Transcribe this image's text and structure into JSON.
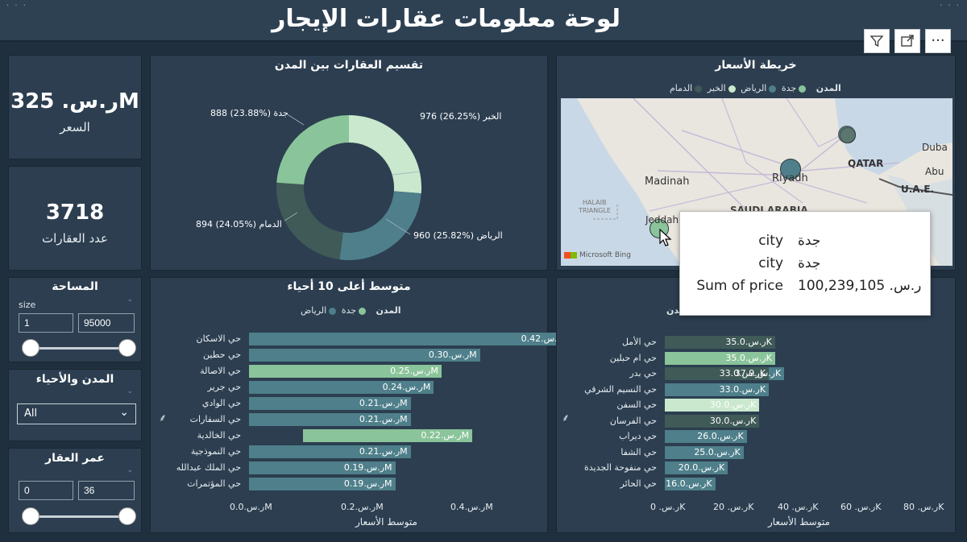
{
  "header": {
    "title": "لوحة معلومات عقارات الإيجار",
    "toolbar": {
      "filter_icon": "filter-icon",
      "focus_icon": "expand-icon",
      "more_label": "···"
    }
  },
  "kpis": {
    "price": {
      "value": "ر.س. 325M",
      "label": "السعر"
    },
    "count": {
      "value": "3718",
      "label": "عدد العقارات"
    }
  },
  "slicers": {
    "area": {
      "title": "المساحة",
      "field": "size",
      "min": "1",
      "max": "95000"
    },
    "city": {
      "title": "المدن والأحياء",
      "value": "All"
    },
    "age": {
      "title": "عمر العقار",
      "min": "0",
      "max": "36"
    }
  },
  "donut": {
    "title": "تقسيم العقارات بين المدن",
    "labels": {
      "jeddah": "888 (23.88%) جدة",
      "khobar": "976 (26.25%) الخبر",
      "riyadh": "960 (25.82%) الرياض",
      "dammam": "894 (24.05%) الدمام"
    }
  },
  "map_panel": {
    "title": "خريطة الأسعار",
    "legend_title": "المدن",
    "legend": [
      "جدة",
      "الرياض",
      "الخبر",
      "الدمام"
    ],
    "labels": {
      "madinah": "Madinah",
      "riyadh": "Riyadh",
      "qatar": "QATAR",
      "dubai": "Duba",
      "abu": "Abu",
      "uae": "U.A.E.",
      "jeddah": "Jeddah",
      "halaib1": "HALAIB",
      "halaib2": "TRIANGLE",
      "saudi": "SAUDI ARABIA",
      "bing": "Microsoft Bing"
    }
  },
  "tooltip": {
    "rows": [
      {
        "key": "city",
        "value": "جدة"
      },
      {
        "key": "city",
        "value": "جدة"
      },
      {
        "key": "Sum of price",
        "value": "ر.س. 100,239,105"
      }
    ]
  },
  "bar_left": {
    "title": "متوسط أعلى 10 أحياء",
    "legend_title": "المدن",
    "legend": [
      "جدة",
      "الرياض"
    ],
    "rows": [
      {
        "name": "حي الاسكان",
        "label": "ر.س.0.42M"
      },
      {
        "name": "حي حطين",
        "label": "ر.س.0.30M"
      },
      {
        "name": "حي الاصالة",
        "label": "ر.س.0.25M"
      },
      {
        "name": "حي جرير",
        "label": "ر.س.0.24M"
      },
      {
        "name": "حي الوادي",
        "label": "ر.س.0.21M"
      },
      {
        "name": "حي السفارات",
        "label": "ر.س.0.21M"
      },
      {
        "name": "حي الخالدية",
        "label": "ر.س.0.22M"
      },
      {
        "name": "حي النموذجية",
        "label": "ر.س.0.21M"
      },
      {
        "name": "حي الملك عبدالله",
        "label": "ر.س.0.19M"
      },
      {
        "name": "حي المؤتمرات",
        "label": "ر.س.0.19M"
      }
    ],
    "ticks": [
      "ر.س.0.0M",
      "ر.س.0.2M",
      "ر.س.0.4M"
    ],
    "xlabel": "متوسط الأسعار"
  },
  "bar_right": {
    "legend_title": "المدن",
    "rows": [
      {
        "name": "حي الأمل",
        "label": "ر.س.35.0K"
      },
      {
        "name": "حي ام حبلين",
        "label": "ر.س.35.0K"
      },
      {
        "name": "حي بدر",
        "label": "ر.س.33.0K",
        "label2": "ر.س.37.9K"
      },
      {
        "name": "حي النسيم الشرقي",
        "label": "ر.س.33.0K"
      },
      {
        "name": "حي السفن",
        "label": "ر.س.30.0K"
      },
      {
        "name": "حي الفرسان",
        "label": "ر.س.30.0K"
      },
      {
        "name": "حي ديراب",
        "label": "ر.س.26.0K"
      },
      {
        "name": "حي الشفا",
        "label": "ر.س.25.0K"
      },
      {
        "name": "حي منفوحة الجديدة",
        "label": "ر.س.20.0K"
      },
      {
        "name": "حي الحائر",
        "label": "ر.س.16.0K"
      }
    ],
    "ticks": [
      "ر.س. 0K",
      "ر.س. 20K",
      "ر.س. 40K",
      "ر.س. 60K",
      "ر.س. 80K"
    ],
    "xlabel": "متوسط الأسعار"
  },
  "chart_data": [
    {
      "type": "pie",
      "title": "تقسيم العقارات بين المدن",
      "categories": [
        "الخبر",
        "الرياض",
        "الدمام",
        "جدة"
      ],
      "values": [
        976,
        960,
        894,
        888
      ],
      "percents": [
        26.25,
        25.82,
        24.05,
        23.88
      ],
      "colors": [
        "#c9e8cd",
        "#4e7f8a",
        "#3f5a57",
        "#8ac49a"
      ]
    },
    {
      "type": "bar",
      "title": "متوسط أعلى 10 أحياء",
      "orientation": "horizontal",
      "xlabel": "متوسط الأسعار",
      "xlim": [
        0,
        0.45
      ],
      "unit": "M ر.س.",
      "series": [
        {
          "name": "الرياض",
          "color": "#4e7f8a",
          "values": [
            0.42,
            0.3,
            null,
            0.24,
            0.21,
            0.21,
            null,
            0.21,
            0.19,
            0.19
          ]
        },
        {
          "name": "جدة",
          "color": "#8ac49a",
          "values": [
            null,
            null,
            0.25,
            null,
            null,
            null,
            0.22,
            null,
            null,
            null
          ]
        }
      ],
      "bar_starts": [
        0,
        0,
        0,
        0,
        0,
        0,
        0.07,
        0,
        0,
        0
      ]
    },
    {
      "type": "bar",
      "orientation": "horizontal",
      "xlabel": "متوسط الأسعار",
      "xlim": [
        0,
        90
      ],
      "unit": "K ر.س.",
      "series": [
        {
          "name": "الدمام",
          "color": "#3f5a57",
          "values": [
            35.0,
            null,
            33.0,
            null,
            null,
            30.0,
            null,
            null,
            null,
            null
          ]
        },
        {
          "name": "الرياض",
          "color": "#4e7f8a",
          "values": [
            null,
            null,
            37.9,
            33.0,
            null,
            null,
            26.0,
            25.0,
            20.0,
            16.0
          ]
        },
        {
          "name": "جدة",
          "color": "#8ac49a",
          "values": [
            null,
            35.0,
            null,
            null,
            null,
            null,
            null,
            null,
            null,
            null
          ]
        },
        {
          "name": "الخبر",
          "color": "#c9e8cd",
          "values": [
            null,
            null,
            null,
            null,
            30.0,
            null,
            null,
            null,
            null,
            null
          ]
        }
      ]
    }
  ]
}
